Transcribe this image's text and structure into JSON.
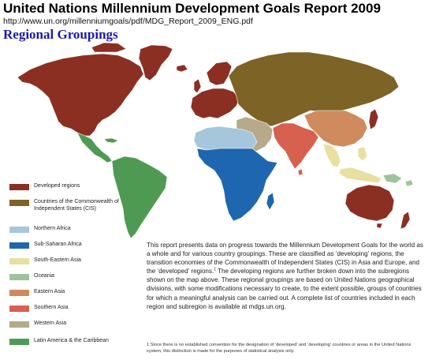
{
  "header": {
    "title": "United Nations Millennium Development Goals Report 2009",
    "url": "http://www.un.org/millenniumgoals/pdf/MDG_Report_2009_ENG.pdf",
    "section_heading": "Regional Groupings"
  },
  "colors": {
    "developed": "#8b2f22",
    "cis": "#7d6326",
    "northern_africa": "#a6c6dc",
    "sub_saharan_africa": "#1f66b0",
    "south_eastern_asia": "#e8e0a0",
    "oceania": "#9ec39a",
    "eastern_asia": "#cf8a5e",
    "southern_asia": "#d8604f",
    "western_asia": "#b7a98a",
    "latin_america": "#4f9a52",
    "ocean": "#ffffff",
    "border": "#ffffff"
  },
  "legend": {
    "items": [
      {
        "label": "Developed regions",
        "color": "#8b2f22",
        "icon": "developed-swatch"
      },
      {
        "label": "Countries of the Commonwealth of Independent States (CIS)",
        "color": "#7d6326",
        "icon": "cis-swatch"
      },
      {
        "label": "Northern Africa",
        "color": "#a6c6dc",
        "icon": "northern-africa-swatch"
      },
      {
        "label": "Sub-Saharan Africa",
        "color": "#1f66b0",
        "icon": "sub-saharan-africa-swatch"
      },
      {
        "label": "South-Eastern Asia",
        "color": "#e8e0a0",
        "icon": "south-eastern-asia-swatch"
      },
      {
        "label": "Oceania",
        "color": "#9ec39a",
        "icon": "oceania-swatch"
      },
      {
        "label": "Eastern Asia",
        "color": "#cf8a5e",
        "icon": "eastern-asia-swatch"
      },
      {
        "label": "Southern Asia",
        "color": "#d8604f",
        "icon": "southern-asia-swatch"
      },
      {
        "label": "Western Asia",
        "color": "#b7a98a",
        "icon": "western-asia-swatch"
      },
      {
        "label": "Latin America & the Caribbean",
        "color": "#4f9a52",
        "icon": "latin-america-swatch"
      }
    ]
  },
  "description": {
    "before_note": "This report presents data on progress towards the Millennium Development Goals for the world as a whole and for various country groupings. These are classified as ‘developing’ regions, the transition economies of the Commonwealth of Independent States (CIS) in Asia and Europe, and the ‘developed’ regions.",
    "note_marker": "1",
    "after_note": " The developing regions are further broken down into the subregions shown on the map above. These regional groupings are based on United Nations geographical divisions, with some modifications necessary to create, to the extent possible, groups of countries for which a meaningful analysis can be carried out. A complete list of countries included in each region and subregion is available at mdgs.un.org."
  },
  "footnote": {
    "marker": "1",
    "text": " Since there is no established convention for the designation of ‘developed’ and ‘developing’ countries or areas in the United Nations system, this distinction is made for the purposes of statistical analysis only."
  }
}
